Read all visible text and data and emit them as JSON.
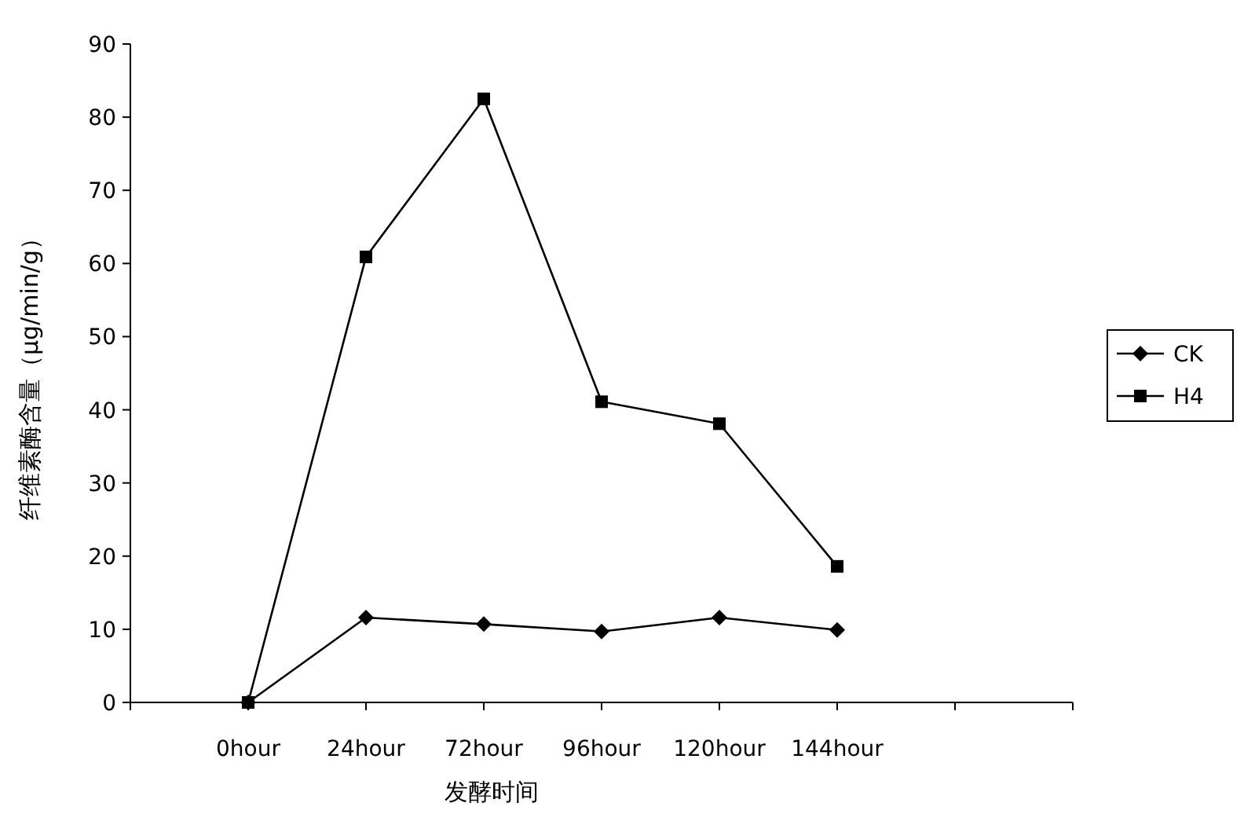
{
  "chart_data": {
    "type": "line",
    "xlabel": "发酵时间",
    "ylabel": "纤维素酶含量（μg/min/g）",
    "categories": [
      "0hour",
      "24hour",
      "72hour",
      "96hour",
      "120hour",
      "144hour"
    ],
    "series": [
      {
        "name": "CK",
        "color": "#000000",
        "marker": "diamond",
        "values": [
          0,
          11.6,
          10.7,
          9.7,
          11.6,
          9.9
        ]
      },
      {
        "name": "H4",
        "color": "#000000",
        "marker": "square",
        "values": [
          0,
          60.9,
          82.5,
          41.1,
          38.1,
          18.6
        ]
      }
    ],
    "ylim": [
      0,
      90
    ],
    "yticks": [
      0,
      10,
      20,
      30,
      40,
      50,
      60,
      70,
      80,
      90
    ],
    "grid": false,
    "legend": "right",
    "line_style": "solid"
  }
}
